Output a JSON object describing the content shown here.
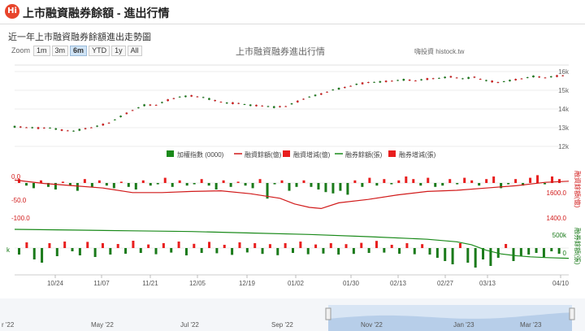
{
  "page": {
    "logo_text": "Hi",
    "title": "上市融資融券餘額 - 進出行情",
    "subtitle": "近一年上市融資融券餘額進出走勢圖"
  },
  "zoom": {
    "label": "Zoom",
    "buttons": [
      "1m",
      "3m",
      "6m",
      "YTD",
      "1y",
      "All"
    ],
    "active": "6m"
  },
  "chart_title": "上市融資融券進出行情",
  "credit": "嗨投資 histock.tw",
  "chart_data": {
    "type": "candlestick+line+bar",
    "x_ticks": [
      "10/24",
      "11/07",
      "11/21",
      "12/05",
      "12/19",
      "01/02",
      "01/30",
      "02/13",
      "02/27",
      "03/13",
      "04/10"
    ],
    "legend": [
      {
        "label": "加權指數 (0000)",
        "color": "#1a8a1a",
        "kind": "box"
      },
      {
        "label": "融資餘額(億)",
        "color": "#d11a1a",
        "kind": "line"
      },
      {
        "label": "融資增減(億)",
        "color": "#e81e1e",
        "kind": "box"
      },
      {
        "label": "融券餘額(張)",
        "color": "#1a8a1a",
        "kind": "line"
      },
      {
        "label": "融券增減(張)",
        "color": "#e81e1e",
        "kind": "box"
      }
    ],
    "index_axis": {
      "labels": [
        "12k",
        "13k",
        "14k",
        "15k",
        "16k"
      ],
      "min": 12000,
      "max": 16000
    },
    "margin_axis": {
      "left_labels": [
        "0.0",
        "-50.0",
        "-100.0"
      ],
      "right_labels": [
        "1600.0",
        "1400.0"
      ],
      "title": "融資餘額(億)"
    },
    "short_axis": {
      "right_labels": [
        "500k",
        "0"
      ],
      "left_label": "k",
      "title": "融券餘額(張)"
    },
    "navigator_labels": [
      "r '22",
      "May '22",
      "Jul '22",
      "Sep '22",
      "Nov '22",
      "Jan '23",
      "Mar '23"
    ],
    "index_points": [
      [
        0,
        13050
      ],
      [
        4,
        13020
      ],
      [
        8,
        12980
      ],
      [
        12,
        12990
      ],
      [
        16,
        12870
      ],
      [
        20,
        12820
      ],
      [
        24,
        12950
      ],
      [
        28,
        13080
      ],
      [
        32,
        13250
      ],
      [
        36,
        13600
      ],
      [
        40,
        13930
      ],
      [
        44,
        14200
      ],
      [
        48,
        14220
      ],
      [
        52,
        14470
      ],
      [
        56,
        14650
      ],
      [
        60,
        14700
      ],
      [
        64,
        14620
      ],
      [
        68,
        14450
      ],
      [
        72,
        14320
      ],
      [
        76,
        14300
      ],
      [
        80,
        14200
      ],
      [
        84,
        14170
      ],
      [
        88,
        14100
      ],
      [
        92,
        14150
      ],
      [
        96,
        14400
      ],
      [
        100,
        14650
      ],
      [
        104,
        14800
      ],
      [
        108,
        15020
      ],
      [
        112,
        15150
      ],
      [
        116,
        15320
      ],
      [
        120,
        15420
      ],
      [
        124,
        15450
      ],
      [
        128,
        15500
      ],
      [
        132,
        15560
      ],
      [
        136,
        15520
      ],
      [
        140,
        15600
      ],
      [
        144,
        15650
      ],
      [
        148,
        15720
      ],
      [
        152,
        15620
      ],
      [
        156,
        15700
      ],
      [
        160,
        15520
      ],
      [
        164,
        15420
      ],
      [
        168,
        15520
      ],
      [
        172,
        15620
      ],
      [
        176,
        15740
      ],
      [
        180,
        15680
      ],
      [
        184,
        15760
      ],
      [
        188,
        15800
      ]
    ],
    "margin_balance": [
      [
        0,
        1555
      ],
      [
        10,
        1540
      ],
      [
        20,
        1530
      ],
      [
        30,
        1520
      ],
      [
        40,
        1500
      ],
      [
        50,
        1500
      ],
      [
        60,
        1505
      ],
      [
        70,
        1508
      ],
      [
        80,
        1495
      ],
      [
        90,
        1475
      ],
      [
        95,
        1450
      ],
      [
        100,
        1435
      ],
      [
        104,
        1430
      ],
      [
        110,
        1455
      ],
      [
        120,
        1470
      ],
      [
        130,
        1490
      ],
      [
        140,
        1505
      ],
      [
        150,
        1510
      ],
      [
        160,
        1520
      ],
      [
        170,
        1530
      ],
      [
        180,
        1545
      ],
      [
        188,
        1550
      ]
    ],
    "short_balance": [
      [
        0,
        920
      ],
      [
        20,
        900
      ],
      [
        40,
        880
      ],
      [
        60,
        860
      ],
      [
        80,
        820
      ],
      [
        100,
        780
      ],
      [
        120,
        720
      ],
      [
        140,
        650
      ],
      [
        150,
        580
      ],
      [
        155,
        500
      ],
      [
        160,
        350
      ],
      [
        165,
        250
      ],
      [
        170,
        200
      ],
      [
        175,
        170
      ],
      [
        180,
        150
      ],
      [
        188,
        130
      ]
    ],
    "margin_changes": [
      3,
      -2,
      -4,
      2,
      -3,
      -5,
      1,
      -2,
      -6,
      3,
      -3,
      2,
      -2,
      -4,
      1,
      -3,
      -5,
      2,
      -2,
      -1,
      4,
      -3,
      2,
      -2,
      -1,
      3,
      -2,
      -5,
      2,
      -3,
      1,
      -2,
      -4,
      3,
      -12,
      -1,
      2,
      -6,
      -3,
      2,
      -3,
      -5,
      -7,
      -8,
      -6,
      -9,
      2,
      -3,
      4,
      -2,
      3,
      -1,
      2,
      5,
      3,
      -2,
      4,
      -3,
      -2,
      3,
      -1,
      4,
      2,
      -2,
      3,
      5,
      -4,
      -1,
      3,
      -2,
      4,
      6,
      -1,
      5,
      3
    ],
    "short_changes": [
      -40,
      35,
      -70,
      -90,
      30,
      -50,
      40,
      -20,
      -45,
      38,
      -55,
      30,
      -40,
      25,
      -35,
      45,
      -30,
      22,
      -38,
      30,
      -28,
      40,
      -45,
      26,
      -30,
      38,
      -32,
      20,
      -42,
      35,
      -27,
      30,
      -36,
      24,
      -44,
      30,
      -30,
      40,
      -38,
      22,
      -34,
      30,
      -40,
      24,
      -36,
      32,
      -30,
      44,
      -28,
      20,
      -35,
      30,
      -38,
      24,
      -40,
      -60,
      -80,
      -100,
      30,
      -90,
      -120,
      -70,
      -110,
      -60,
      25,
      -80,
      -50,
      -40,
      -30,
      -55,
      -20,
      -35
    ]
  }
}
